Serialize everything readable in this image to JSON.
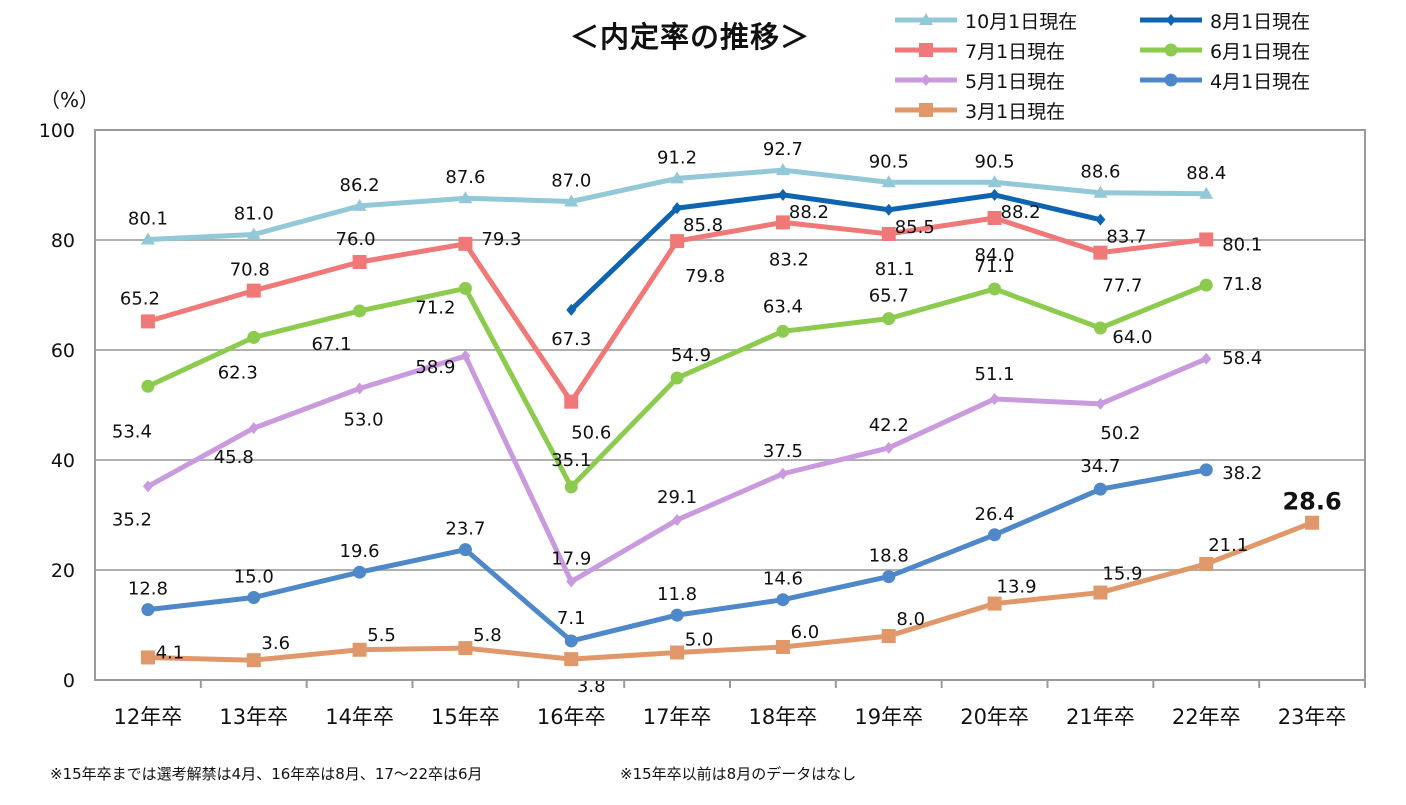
{
  "title": "＜内定率の推移＞",
  "footnotes": [
    "※15年卒までは選考解禁は4月、16年卒は8月、17～22卒は6月",
    "※15年卒以前は8月のデータはなし"
  ],
  "chart_data": {
    "type": "line",
    "title": "＜内定率の推移＞",
    "ylabel": "（%）",
    "xlabel": "",
    "ylim": [
      0,
      100
    ],
    "yticks": [
      "0",
      "20",
      "40",
      "60",
      "80",
      "100"
    ],
    "grid": true,
    "legend_position": "top-right",
    "categories": [
      "12年卒",
      "13年卒",
      "14年卒",
      "15年卒",
      "16年卒",
      "17年卒",
      "18年卒",
      "19年卒",
      "20年卒",
      "21年卒",
      "22年卒",
      "23年卒"
    ],
    "series": [
      {
        "name": "10月1日現在",
        "color": "#92c8d8",
        "marker": "triangle",
        "values": [
          80.1,
          81.0,
          86.2,
          87.6,
          87.0,
          91.2,
          92.7,
          90.5,
          90.5,
          88.6,
          88.4,
          null
        ],
        "labels": [
          "80.1",
          "81.0",
          "86.2",
          "87.6",
          "87.0",
          "91.2",
          "92.7",
          "90.5",
          "90.5",
          "88.6",
          "88.4",
          null
        ]
      },
      {
        "name": "8月1日現在",
        "color": "#0f64b0",
        "marker": "diamond",
        "values": [
          null,
          null,
          null,
          null,
          67.3,
          85.8,
          88.2,
          85.5,
          88.2,
          83.7,
          null,
          null
        ],
        "labels": [
          null,
          null,
          null,
          null,
          "67.3",
          "85.8",
          "88.2",
          "85.5",
          "88.2",
          "83.7",
          null,
          null
        ]
      },
      {
        "name": "7月1日現在",
        "color": "#f07878",
        "marker": "square",
        "values": [
          65.2,
          70.8,
          76.0,
          79.3,
          50.6,
          79.8,
          83.2,
          81.1,
          84.0,
          77.7,
          80.1,
          null
        ],
        "labels": [
          "65.2",
          "70.8",
          "76.0",
          "79.3",
          "50.6",
          "79.8",
          "83.2",
          "81.1",
          "84.0",
          "77.7",
          "80.1",
          null
        ]
      },
      {
        "name": "6月1日現在",
        "color": "#8ccb4e",
        "marker": "circle",
        "values": [
          53.4,
          62.3,
          67.1,
          71.2,
          35.1,
          54.9,
          63.4,
          65.7,
          71.1,
          64.0,
          71.8,
          null
        ],
        "labels": [
          "53.4",
          "62.3",
          "67.1",
          "71.2",
          "35.1",
          "54.9",
          "63.4",
          "65.7",
          "71.1",
          "64.0",
          "71.8",
          null
        ]
      },
      {
        "name": "5月1日現在",
        "color": "#c99ade",
        "marker": "diamond",
        "values": [
          35.2,
          45.8,
          53.0,
          58.9,
          17.9,
          29.1,
          37.5,
          42.2,
          51.1,
          50.2,
          58.4,
          null
        ],
        "labels": [
          "35.2",
          "45.8",
          "53.0",
          "58.9",
          "17.9",
          "29.1",
          "37.5",
          "42.2",
          "51.1",
          "50.2",
          "58.4",
          null
        ]
      },
      {
        "name": "4月1日現在",
        "color": "#4f88c8",
        "marker": "circle",
        "values": [
          12.8,
          15.0,
          19.6,
          23.7,
          7.1,
          11.8,
          14.6,
          18.8,
          26.4,
          34.7,
          38.2,
          null
        ],
        "labels": [
          "12.8",
          "15.0",
          "19.6",
          "23.7",
          "7.1",
          "11.8",
          "14.6",
          "18.8",
          "26.4",
          "34.7",
          "38.2",
          null
        ]
      },
      {
        "name": "3月1日現在",
        "color": "#e0986a",
        "marker": "square",
        "values": [
          4.1,
          3.6,
          5.5,
          5.8,
          3.8,
          5.0,
          6.0,
          8.0,
          13.9,
          15.9,
          21.1,
          28.6
        ],
        "labels": [
          "4.1",
          "3.6",
          "5.5",
          "5.8",
          "3.8",
          "5.0",
          "6.0",
          "8.0",
          "13.9",
          "15.9",
          "21.1",
          "28.6"
        ]
      }
    ]
  }
}
